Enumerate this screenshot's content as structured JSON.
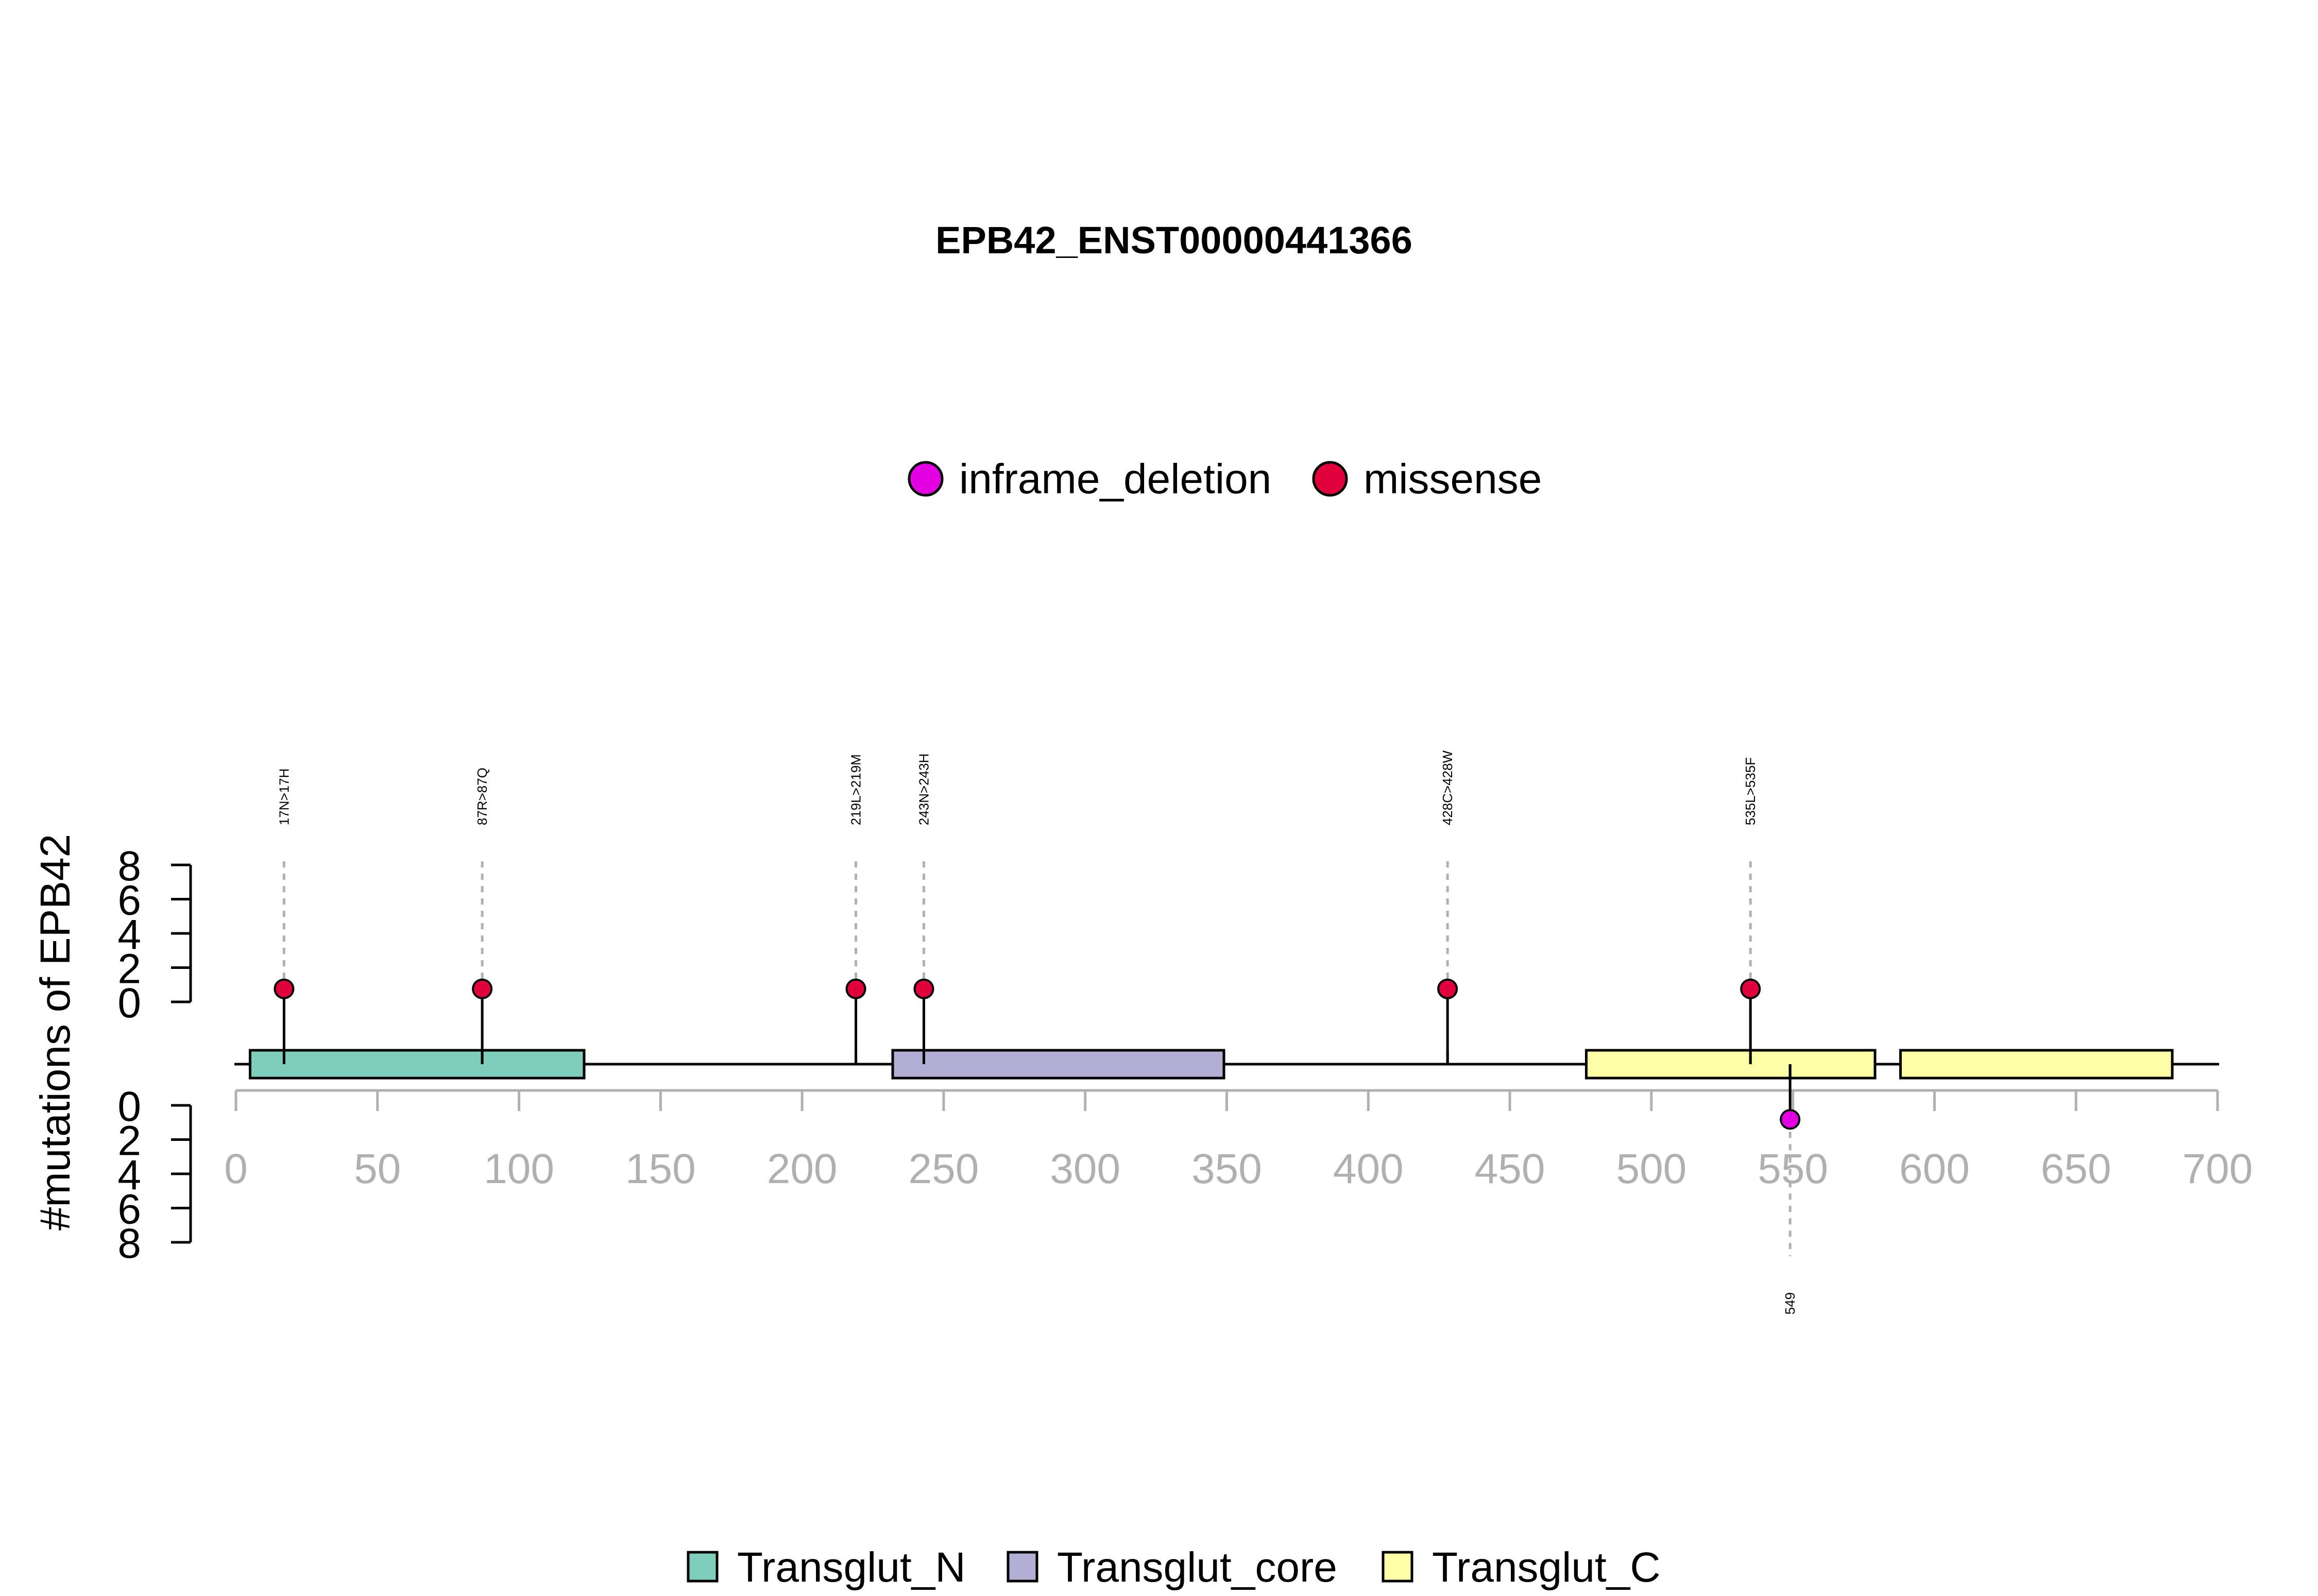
{
  "chart_data": {
    "type": "lollipop",
    "title": "EPB42_ENST00000441366",
    "ylabel": "#mutations of EPB42",
    "xlim": [
      0,
      700
    ],
    "x_ticks": [
      0,
      50,
      100,
      150,
      200,
      250,
      300,
      350,
      400,
      450,
      500,
      550,
      600,
      650,
      700
    ],
    "y_ticks_upper": [
      0,
      2,
      4,
      6,
      8
    ],
    "y_ticks_lower": [
      0,
      2,
      4,
      6,
      8
    ],
    "legend_mutation_types": [
      {
        "name": "inframe_deletion",
        "color": "#e300e3"
      },
      {
        "name": "missense",
        "color": "#e0003c"
      }
    ],
    "mutations": [
      {
        "position": 17,
        "count": 1,
        "type": "missense",
        "label": "17N>17H",
        "side": "upper"
      },
      {
        "position": 87,
        "count": 1,
        "type": "missense",
        "label": "87R>87Q",
        "side": "upper"
      },
      {
        "position": 219,
        "count": 1,
        "type": "missense",
        "label": "219L>219M",
        "side": "upper"
      },
      {
        "position": 243,
        "count": 1,
        "type": "missense",
        "label": "243N>243H",
        "side": "upper"
      },
      {
        "position": 428,
        "count": 1,
        "type": "missense",
        "label": "428C>428W",
        "side": "upper"
      },
      {
        "position": 535,
        "count": 1,
        "type": "missense",
        "label": "535L>535F",
        "side": "upper"
      },
      {
        "position": 549,
        "count": 1,
        "type": "inframe_deletion",
        "label": "549",
        "side": "lower"
      }
    ],
    "domains": [
      {
        "name": "Transglut_N",
        "start": 5,
        "end": 123,
        "color": "#7fcdbb"
      },
      {
        "name": "Transglut_core",
        "start": 232,
        "end": 349,
        "color": "#b3aed4"
      },
      {
        "name": "Transglut_C",
        "start": 477,
        "end": 579,
        "color": "#ffffa8"
      },
      {
        "name": "Transglut_C",
        "start": 588,
        "end": 684,
        "color": "#ffffa8"
      }
    ],
    "legend_domains": [
      {
        "name": "Transglut_N",
        "color": "#7fcdbb"
      },
      {
        "name": "Transglut_core",
        "color": "#b3aed4"
      },
      {
        "name": "Transglut_C",
        "color": "#ffffa8"
      }
    ]
  }
}
